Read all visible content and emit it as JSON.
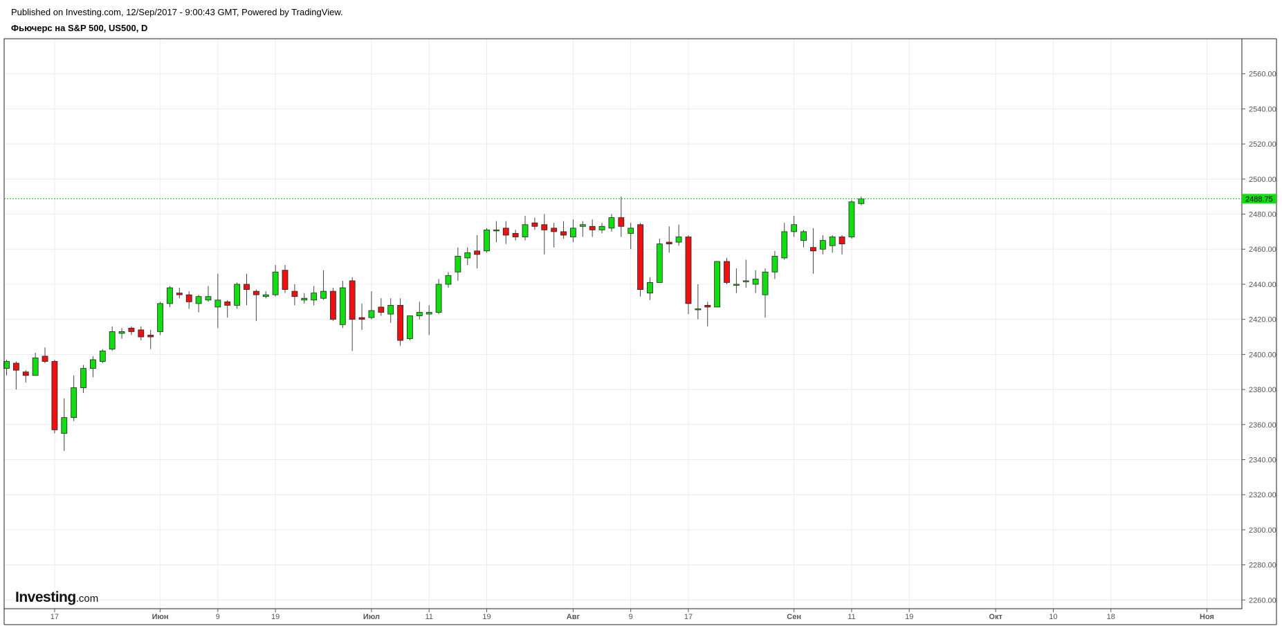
{
  "header": {
    "published": "Published on Investing.com, 12/Sep/2017 - 9:00:43 GMT, Powered by TradingView.",
    "title": "Фьючерс на S&P 500, US500, D"
  },
  "logo": {
    "brand": "Investing",
    "suffix": ".com"
  },
  "colors": {
    "up": "#11dd11",
    "down": "#ee1111",
    "wick": "#444444",
    "grid": "#ececec",
    "last_price_line": "#11bb11"
  },
  "chart_data": {
    "type": "candlestick",
    "title": "Фьючерс на S&P 500, US500, D",
    "ylim": [
      2255,
      2580
    ],
    "y_ticks": [
      2260,
      2280,
      2300,
      2320,
      2340,
      2360,
      2380,
      2400,
      2420,
      2440,
      2460,
      2480,
      2500,
      2520,
      2540,
      2560
    ],
    "y_tick_labels": [
      "2260.00",
      "2280.00",
      "2300.00",
      "2320.00",
      "2340.00",
      "2360.00",
      "2380.00",
      "2400.00",
      "2420.00",
      "2440.00",
      "2460.00",
      "2480.00",
      "2500.00",
      "2520.00",
      "2540.00",
      "2560.00"
    ],
    "x_ticks": [
      {
        "label": "17",
        "bar": 5,
        "bold": false
      },
      {
        "label": "Июн",
        "bar": 16,
        "bold": true
      },
      {
        "label": "9",
        "bar": 22,
        "bold": false
      },
      {
        "label": "19",
        "bar": 28,
        "bold": false
      },
      {
        "label": "Июл",
        "bar": 38,
        "bold": true
      },
      {
        "label": "11",
        "bar": 44,
        "bold": false
      },
      {
        "label": "19",
        "bar": 50,
        "bold": false
      },
      {
        "label": "Авг",
        "bar": 59,
        "bold": true
      },
      {
        "label": "9",
        "bar": 65,
        "bold": false
      },
      {
        "label": "17",
        "bar": 71,
        "bold": false
      },
      {
        "label": "Сен",
        "bar": 82,
        "bold": true
      },
      {
        "label": "11",
        "bar": 88,
        "bold": false
      },
      {
        "label": "19",
        "bar": 94,
        "bold": false
      },
      {
        "label": "Окт",
        "bar": 103,
        "bold": true
      },
      {
        "label": "10",
        "bar": 109,
        "bold": false
      },
      {
        "label": "18",
        "bar": 115,
        "bold": false
      },
      {
        "label": "Ноя",
        "bar": 125,
        "bold": true
      }
    ],
    "last_price": 2488.75,
    "last_price_label": "2488.75",
    "candles": [
      {
        "o": 2392,
        "h": 2397,
        "l": 2388,
        "c": 2396
      },
      {
        "o": 2395,
        "h": 2396,
        "l": 2380,
        "c": 2391
      },
      {
        "o": 2390,
        "h": 2391,
        "l": 2384,
        "c": 2388
      },
      {
        "o": 2388,
        "h": 2401,
        "l": 2388,
        "c": 2398
      },
      {
        "o": 2399,
        "h": 2404,
        "l": 2395,
        "c": 2396
      },
      {
        "o": 2396,
        "h": 2397,
        "l": 2355,
        "c": 2357
      },
      {
        "o": 2355,
        "h": 2375,
        "l": 2345,
        "c": 2364
      },
      {
        "o": 2364,
        "h": 2388,
        "l": 2362,
        "c": 2381
      },
      {
        "o": 2381,
        "h": 2394,
        "l": 2378,
        "c": 2392
      },
      {
        "o": 2392,
        "h": 2399,
        "l": 2387,
        "c": 2397
      },
      {
        "o": 2396,
        "h": 2403,
        "l": 2395,
        "c": 2402
      },
      {
        "o": 2403,
        "h": 2416,
        "l": 2402,
        "c": 2413
      },
      {
        "o": 2412,
        "h": 2415,
        "l": 2409,
        "c": 2413
      },
      {
        "o": 2415,
        "h": 2416,
        "l": 2411,
        "c": 2413
      },
      {
        "o": 2414,
        "h": 2416,
        "l": 2408,
        "c": 2410
      },
      {
        "o": 2411,
        "h": 2414,
        "l": 2403,
        "c": 2410
      },
      {
        "o": 2413,
        "h": 2430,
        "l": 2411,
        "c": 2429
      },
      {
        "o": 2429,
        "h": 2439,
        "l": 2427,
        "c": 2438
      },
      {
        "o": 2435,
        "h": 2438,
        "l": 2432,
        "c": 2434
      },
      {
        "o": 2434,
        "h": 2436,
        "l": 2426,
        "c": 2430
      },
      {
        "o": 2429,
        "h": 2434,
        "l": 2424,
        "c": 2433
      },
      {
        "o": 2431,
        "h": 2439,
        "l": 2430,
        "c": 2433
      },
      {
        "o": 2427,
        "h": 2446,
        "l": 2415,
        "c": 2431
      },
      {
        "o": 2430,
        "h": 2431,
        "l": 2421,
        "c": 2428
      },
      {
        "o": 2428,
        "h": 2441,
        "l": 2426,
        "c": 2440
      },
      {
        "o": 2440,
        "h": 2446,
        "l": 2428,
        "c": 2437
      },
      {
        "o": 2436,
        "h": 2437,
        "l": 2419,
        "c": 2434
      },
      {
        "o": 2433,
        "h": 2436,
        "l": 2432,
        "c": 2434
      },
      {
        "o": 2434,
        "h": 2451,
        "l": 2433,
        "c": 2447
      },
      {
        "o": 2448,
        "h": 2451,
        "l": 2435,
        "c": 2437
      },
      {
        "o": 2436,
        "h": 2440,
        "l": 2428,
        "c": 2433
      },
      {
        "o": 2431,
        "h": 2435,
        "l": 2429,
        "c": 2432
      },
      {
        "o": 2431,
        "h": 2439,
        "l": 2428,
        "c": 2435
      },
      {
        "o": 2432,
        "h": 2448,
        "l": 2431,
        "c": 2436
      },
      {
        "o": 2436,
        "h": 2438,
        "l": 2419,
        "c": 2420
      },
      {
        "o": 2417,
        "h": 2442,
        "l": 2415,
        "c": 2438
      },
      {
        "o": 2442,
        "h": 2444,
        "l": 2402,
        "c": 2420
      },
      {
        "o": 2421,
        "h": 2429,
        "l": 2414,
        "c": 2420
      },
      {
        "o": 2421,
        "h": 2436,
        "l": 2420,
        "c": 2425
      },
      {
        "o": 2427,
        "h": 2432,
        "l": 2422,
        "c": 2424
      },
      {
        "o": 2423,
        "h": 2432,
        "l": 2418,
        "c": 2428
      },
      {
        "o": 2428,
        "h": 2432,
        "l": 2405,
        "c": 2408
      },
      {
        "o": 2409,
        "h": 2421,
        "l": 2408,
        "c": 2422
      },
      {
        "o": 2422,
        "h": 2430,
        "l": 2420,
        "c": 2424
      },
      {
        "o": 2423,
        "h": 2428,
        "l": 2411,
        "c": 2424
      },
      {
        "o": 2424,
        "h": 2443,
        "l": 2423,
        "c": 2440
      },
      {
        "o": 2440,
        "h": 2447,
        "l": 2438,
        "c": 2445
      },
      {
        "o": 2447,
        "h": 2461,
        "l": 2442,
        "c": 2456
      },
      {
        "o": 2455,
        "h": 2461,
        "l": 2451,
        "c": 2458
      },
      {
        "o": 2459,
        "h": 2468,
        "l": 2449,
        "c": 2457
      },
      {
        "o": 2459,
        "h": 2472,
        "l": 2458,
        "c": 2471
      },
      {
        "o": 2471,
        "h": 2476,
        "l": 2464,
        "c": 2471
      },
      {
        "o": 2472,
        "h": 2476,
        "l": 2463,
        "c": 2468
      },
      {
        "o": 2469,
        "h": 2471,
        "l": 2465,
        "c": 2467
      },
      {
        "o": 2467,
        "h": 2479,
        "l": 2465,
        "c": 2474
      },
      {
        "o": 2475,
        "h": 2478,
        "l": 2471,
        "c": 2473
      },
      {
        "o": 2474,
        "h": 2480,
        "l": 2457,
        "c": 2471
      },
      {
        "o": 2472,
        "h": 2475,
        "l": 2461,
        "c": 2470
      },
      {
        "o": 2470,
        "h": 2476,
        "l": 2466,
        "c": 2468
      },
      {
        "o": 2467,
        "h": 2477,
        "l": 2464,
        "c": 2472
      },
      {
        "o": 2473,
        "h": 2476,
        "l": 2467,
        "c": 2474
      },
      {
        "o": 2473,
        "h": 2477,
        "l": 2467,
        "c": 2471
      },
      {
        "o": 2471,
        "h": 2475,
        "l": 2469,
        "c": 2473
      },
      {
        "o": 2472,
        "h": 2480,
        "l": 2470,
        "c": 2478
      },
      {
        "o": 2478,
        "h": 2490,
        "l": 2467,
        "c": 2473
      },
      {
        "o": 2469,
        "h": 2475,
        "l": 2460,
        "c": 2472
      },
      {
        "o": 2474,
        "h": 2475,
        "l": 2433,
        "c": 2437
      },
      {
        "o": 2435,
        "h": 2444,
        "l": 2431,
        "c": 2441
      },
      {
        "o": 2441,
        "h": 2466,
        "l": 2441,
        "c": 2463
      },
      {
        "o": 2464,
        "h": 2473,
        "l": 2458,
        "c": 2463
      },
      {
        "o": 2464,
        "h": 2474,
        "l": 2462,
        "c": 2467
      },
      {
        "o": 2467,
        "h": 2468,
        "l": 2423,
        "c": 2429
      },
      {
        "o": 2426,
        "h": 2440,
        "l": 2420,
        "c": 2426
      },
      {
        "o": 2428,
        "h": 2430,
        "l": 2416,
        "c": 2427
      },
      {
        "o": 2427,
        "h": 2453,
        "l": 2427,
        "c": 2453
      },
      {
        "o": 2453,
        "h": 2455,
        "l": 2440,
        "c": 2441
      },
      {
        "o": 2440,
        "h": 2449,
        "l": 2435,
        "c": 2440
      },
      {
        "o": 2442,
        "h": 2454,
        "l": 2438,
        "c": 2442
      },
      {
        "o": 2440,
        "h": 2448,
        "l": 2435,
        "c": 2443
      },
      {
        "o": 2434,
        "h": 2449,
        "l": 2421,
        "c": 2447
      },
      {
        "o": 2447,
        "h": 2459,
        "l": 2443,
        "c": 2456
      },
      {
        "o": 2455,
        "h": 2475,
        "l": 2454,
        "c": 2470
      },
      {
        "o": 2470,
        "h": 2479,
        "l": 2467,
        "c": 2474
      },
      {
        "o": 2465,
        "h": 2471,
        "l": 2461,
        "c": 2470
      },
      {
        "o": 2461,
        "h": 2472,
        "l": 2446,
        "c": 2459
      },
      {
        "o": 2460,
        "h": 2468,
        "l": 2457,
        "c": 2465
      },
      {
        "o": 2462,
        "h": 2468,
        "l": 2458,
        "c": 2467
      },
      {
        "o": 2467,
        "h": 2468,
        "l": 2457,
        "c": 2463
      },
      {
        "o": 2467,
        "h": 2488,
        "l": 2466,
        "c": 2487
      },
      {
        "o": 2486,
        "h": 2490,
        "l": 2485,
        "c": 2488.75
      }
    ]
  }
}
